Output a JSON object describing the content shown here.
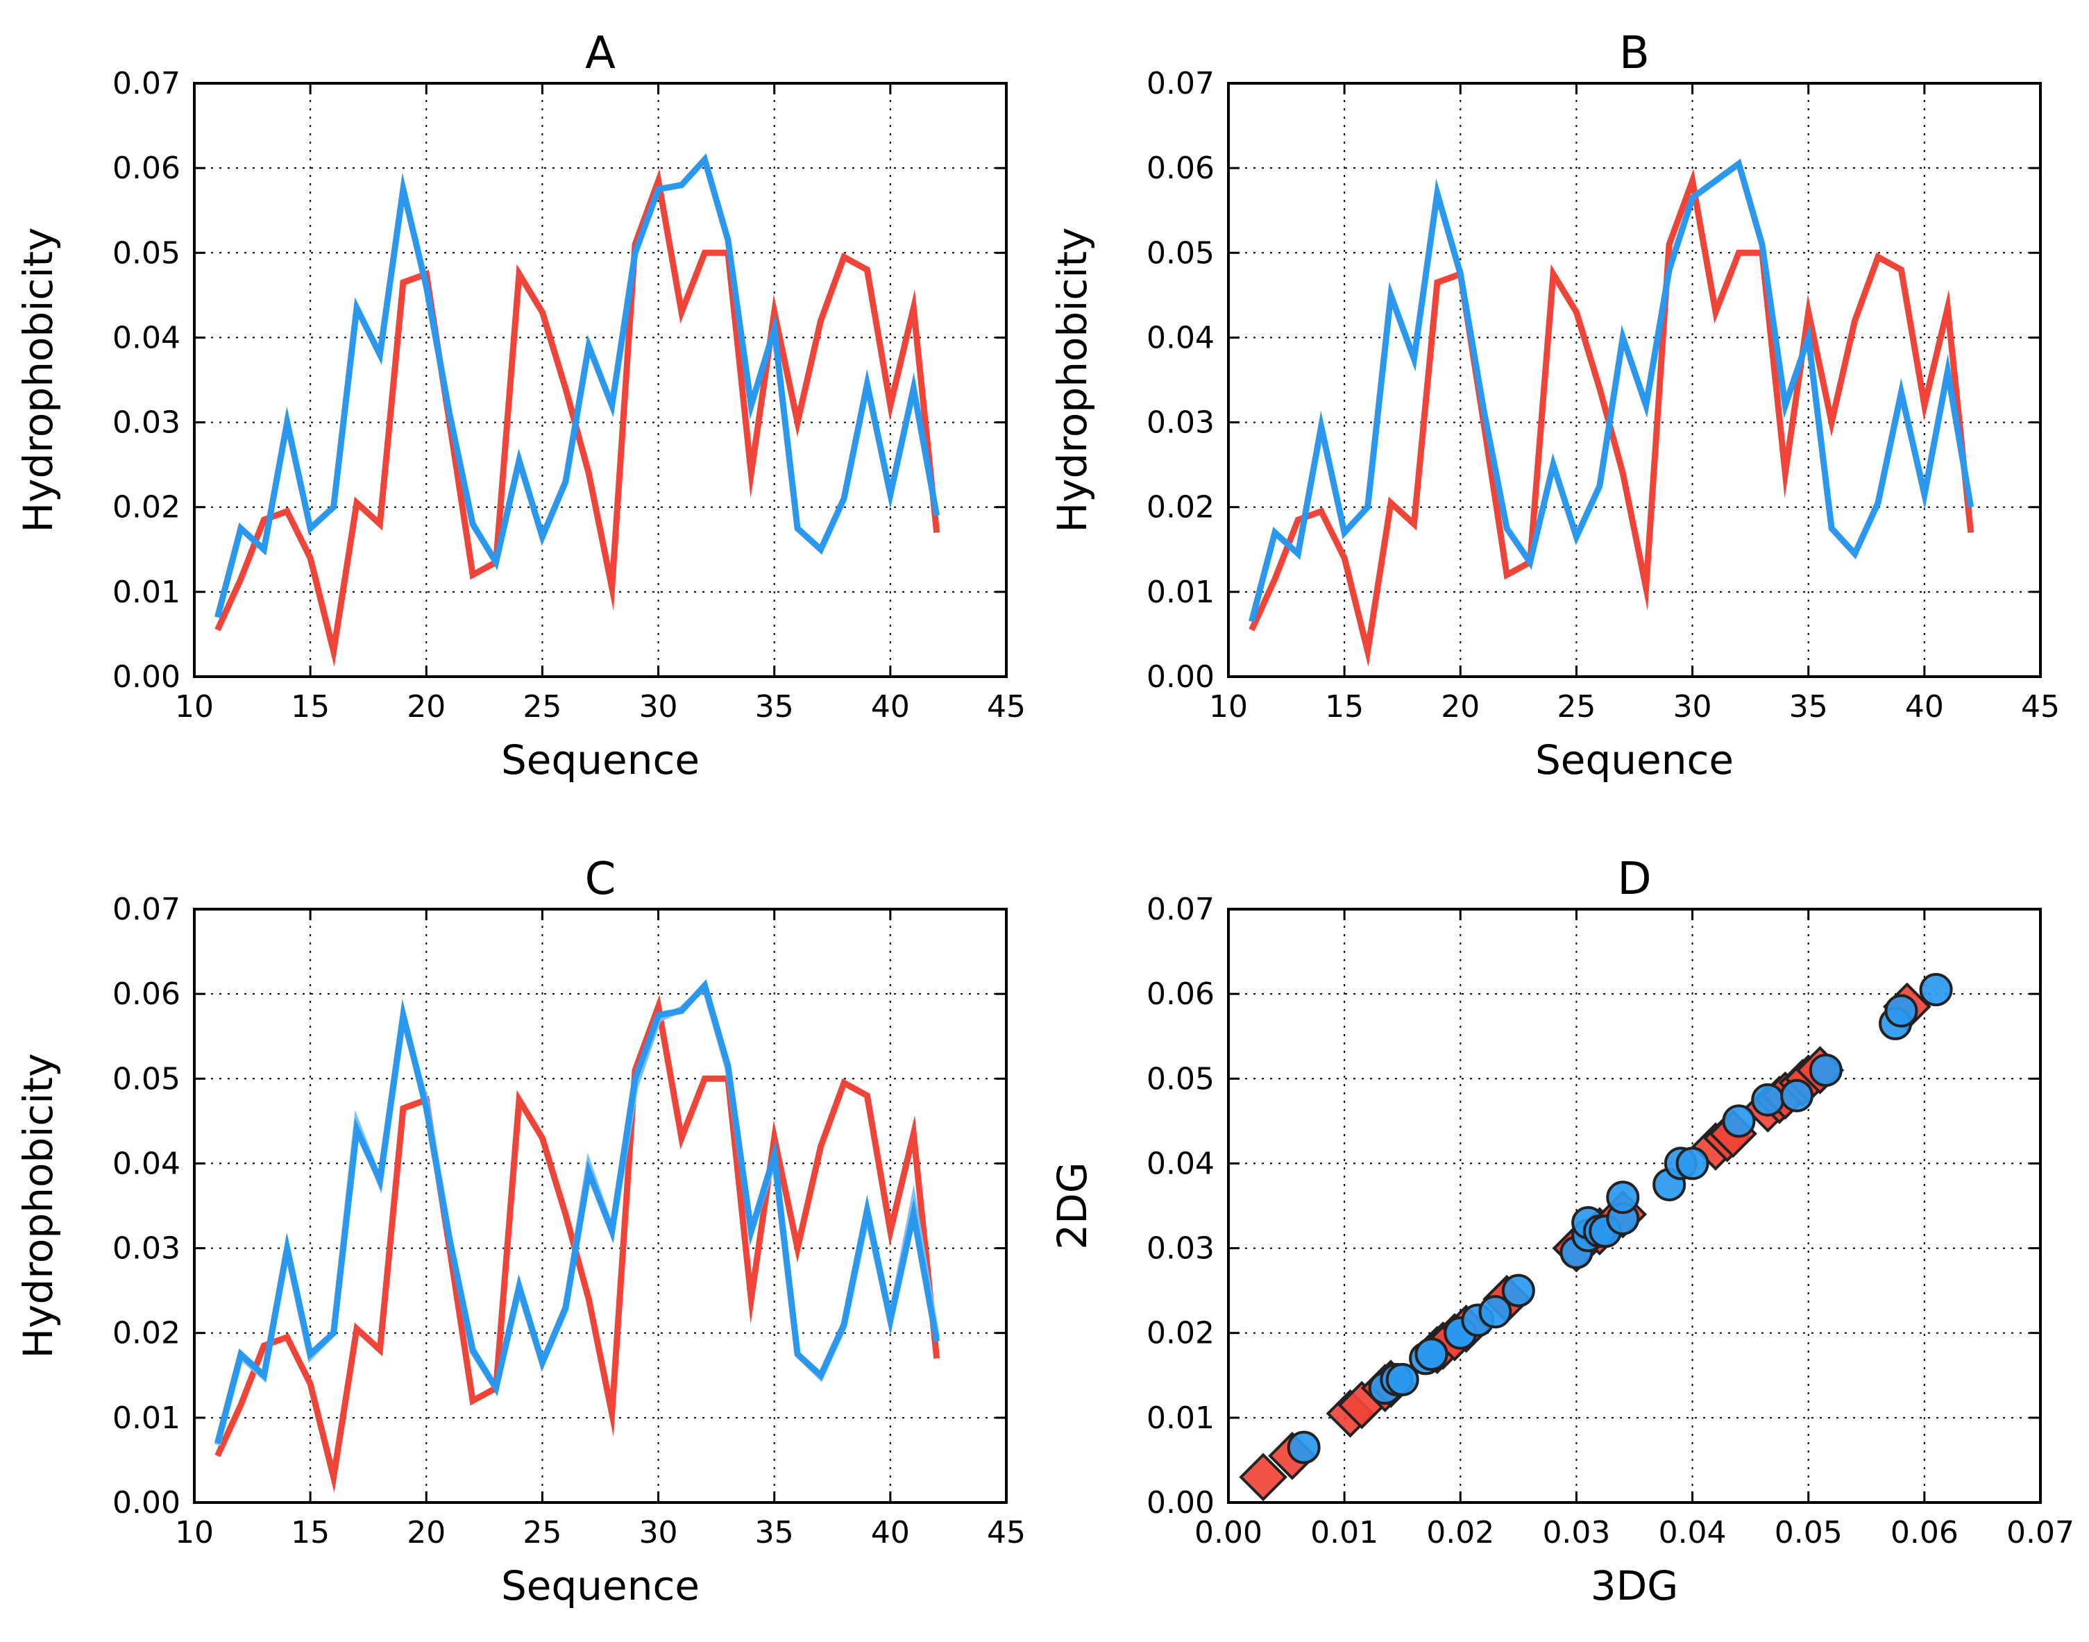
{
  "chart_data": [
    {
      "type": "line",
      "title": "A",
      "xlabel": "Sequence",
      "ylabel": "Hydrophobicity",
      "xlim": [
        10,
        45
      ],
      "ylim": [
        0.0,
        0.07
      ],
      "xticks": [
        "10",
        "15",
        "20",
        "25",
        "30",
        "35",
        "40",
        "45"
      ],
      "yticks": [
        "0.00",
        "0.01",
        "0.02",
        "0.03",
        "0.04",
        "0.05",
        "0.06",
        "0.07"
      ],
      "grid": true,
      "x": [
        11,
        12,
        13,
        14,
        15,
        16,
        17,
        18,
        19,
        20,
        21,
        22,
        23,
        24,
        25,
        26,
        27,
        28,
        29,
        30,
        31,
        32,
        33,
        34,
        35,
        36,
        37,
        38,
        39,
        40,
        41,
        42
      ],
      "series": [
        {
          "name": "red",
          "color": "#f04438",
          "values": [
            0.0055,
            0.0115,
            0.0185,
            0.0195,
            0.014,
            0.003,
            0.0205,
            0.018,
            0.0465,
            0.0475,
            0.03,
            0.012,
            0.0135,
            0.0475,
            0.043,
            0.034,
            0.024,
            0.0105,
            0.051,
            0.0585,
            0.043,
            0.05,
            0.05,
            0.024,
            0.043,
            0.03,
            0.042,
            0.0495,
            0.048,
            0.032,
            0.0435,
            0.017
          ]
        },
        {
          "name": "blue",
          "color": "#2b98ef",
          "values": [
            0.007,
            0.0175,
            0.015,
            0.03,
            0.0175,
            0.02,
            0.0435,
            0.038,
            0.0575,
            0.046,
            0.031,
            0.018,
            0.0135,
            0.0255,
            0.0165,
            0.023,
            0.039,
            0.032,
            0.05,
            0.0575,
            0.058,
            0.061,
            0.0515,
            0.032,
            0.041,
            0.0175,
            0.015,
            0.021,
            0.0345,
            0.0215,
            0.034,
            0.019
          ]
        }
      ]
    },
    {
      "type": "line",
      "title": "B",
      "xlabel": "Sequence",
      "ylabel": "Hydrophobicity",
      "xlim": [
        10,
        45
      ],
      "ylim": [
        0.0,
        0.07
      ],
      "xticks": [
        "10",
        "15",
        "20",
        "25",
        "30",
        "35",
        "40",
        "45"
      ],
      "yticks": [
        "0.00",
        "0.01",
        "0.02",
        "0.03",
        "0.04",
        "0.05",
        "0.06",
        "0.07"
      ],
      "grid": true,
      "x": [
        11,
        12,
        13,
        14,
        15,
        16,
        17,
        18,
        19,
        20,
        21,
        22,
        23,
        24,
        25,
        26,
        27,
        28,
        29,
        30,
        31,
        32,
        33,
        34,
        35,
        36,
        37,
        38,
        39,
        40,
        41,
        42
      ],
      "series": [
        {
          "name": "red",
          "color": "#f04438",
          "values": [
            0.0055,
            0.0115,
            0.0185,
            0.0195,
            0.014,
            0.003,
            0.0205,
            0.018,
            0.0465,
            0.0475,
            0.03,
            0.012,
            0.0135,
            0.0475,
            0.043,
            0.034,
            0.024,
            0.0105,
            0.051,
            0.0585,
            0.043,
            0.05,
            0.05,
            0.024,
            0.043,
            0.03,
            0.042,
            0.0495,
            0.048,
            0.032,
            0.0435,
            0.017
          ]
        },
        {
          "name": "blue",
          "color": "#2b98ef",
          "values": [
            0.0065,
            0.017,
            0.0145,
            0.0295,
            0.017,
            0.02,
            0.045,
            0.0375,
            0.057,
            0.0475,
            0.0315,
            0.0175,
            0.0135,
            0.025,
            0.0165,
            0.0225,
            0.04,
            0.032,
            0.048,
            0.0565,
            0.0585,
            0.0605,
            0.051,
            0.032,
            0.04,
            0.0175,
            0.0145,
            0.0205,
            0.0335,
            0.0215,
            0.036,
            0.02
          ]
        }
      ]
    },
    {
      "type": "line",
      "title": "C",
      "xlabel": "Sequence",
      "ylabel": "Hydrophobicity",
      "xlim": [
        10,
        45
      ],
      "ylim": [
        0.0,
        0.07
      ],
      "xticks": [
        "10",
        "15",
        "20",
        "25",
        "30",
        "35",
        "40",
        "45"
      ],
      "yticks": [
        "0.00",
        "0.01",
        "0.02",
        "0.03",
        "0.04",
        "0.05",
        "0.06",
        "0.07"
      ],
      "grid": true,
      "x": [
        11,
        12,
        13,
        14,
        15,
        16,
        17,
        18,
        19,
        20,
        21,
        22,
        23,
        24,
        25,
        26,
        27,
        28,
        29,
        30,
        31,
        32,
        33,
        34,
        35,
        36,
        37,
        38,
        39,
        40,
        41,
        42
      ],
      "series": [
        {
          "name": "red",
          "color": "#f04438",
          "values": [
            0.0055,
            0.0115,
            0.0185,
            0.0195,
            0.014,
            0.003,
            0.0205,
            0.018,
            0.0465,
            0.0475,
            0.03,
            0.012,
            0.0135,
            0.0475,
            0.043,
            0.034,
            0.024,
            0.0105,
            0.051,
            0.0585,
            0.043,
            0.05,
            0.05,
            0.024,
            0.043,
            0.03,
            0.042,
            0.0495,
            0.048,
            0.032,
            0.0435,
            0.017
          ]
        },
        {
          "name": "blue-light",
          "color": "#7fc0f5",
          "values": [
            0.0068,
            0.0172,
            0.0148,
            0.0298,
            0.0172,
            0.02,
            0.0448,
            0.0378,
            0.0572,
            0.047,
            0.0312,
            0.0178,
            0.0135,
            0.0252,
            0.0165,
            0.0228,
            0.0398,
            0.032,
            0.049,
            0.057,
            0.0582,
            0.0608,
            0.0512,
            0.032,
            0.0405,
            0.0175,
            0.0148,
            0.0208,
            0.034,
            0.0215,
            0.0355,
            0.0195
          ]
        },
        {
          "name": "blue",
          "color": "#2b98ef",
          "values": [
            0.007,
            0.0175,
            0.015,
            0.03,
            0.0175,
            0.02,
            0.044,
            0.038,
            0.0575,
            0.0465,
            0.031,
            0.018,
            0.0135,
            0.0255,
            0.0165,
            0.023,
            0.039,
            0.032,
            0.05,
            0.0575,
            0.058,
            0.061,
            0.0515,
            0.032,
            0.041,
            0.0175,
            0.015,
            0.021,
            0.0345,
            0.0215,
            0.034,
            0.019
          ]
        }
      ]
    },
    {
      "type": "scatter",
      "title": "D",
      "xlabel": "3DG",
      "ylabel": "2DG",
      "xlim": [
        0.0,
        0.07
      ],
      "ylim": [
        0.0,
        0.07
      ],
      "xticks": [
        "0.00",
        "0.01",
        "0.02",
        "0.03",
        "0.04",
        "0.05",
        "0.06",
        "0.07"
      ],
      "yticks": [
        "0.00",
        "0.01",
        "0.02",
        "0.03",
        "0.04",
        "0.05",
        "0.06",
        "0.07"
      ],
      "grid": true,
      "series": [
        {
          "name": "red-diamonds",
          "marker": "diamond",
          "color": "#f04438",
          "x": [
            0.003,
            0.0055,
            0.0105,
            0.0115,
            0.0135,
            0.014,
            0.018,
            0.0185,
            0.0195,
            0.0205,
            0.024,
            0.024,
            0.03,
            0.03,
            0.032,
            0.034,
            0.042,
            0.043,
            0.043,
            0.0435,
            0.0465,
            0.0475,
            0.0475,
            0.048,
            0.0495,
            0.05,
            0.05,
            0.051,
            0.0585
          ],
          "y": [
            0.003,
            0.0055,
            0.0105,
            0.0115,
            0.0135,
            0.014,
            0.018,
            0.0185,
            0.0195,
            0.0205,
            0.024,
            0.024,
            0.03,
            0.03,
            0.032,
            0.034,
            0.042,
            0.043,
            0.043,
            0.0435,
            0.0465,
            0.0475,
            0.0475,
            0.048,
            0.0495,
            0.05,
            0.05,
            0.051,
            0.0585
          ]
        },
        {
          "name": "blue-circles",
          "marker": "circle",
          "color": "#2b98ef",
          "x": [
            0.0065,
            0.0135,
            0.0145,
            0.015,
            0.017,
            0.0175,
            0.0175,
            0.02,
            0.02,
            0.0215,
            0.023,
            0.025,
            0.03,
            0.031,
            0.031,
            0.032,
            0.0325,
            0.034,
            0.034,
            0.038,
            0.039,
            0.04,
            0.044,
            0.0465,
            0.049,
            0.0515,
            0.0575,
            0.058,
            0.061
          ],
          "y": [
            0.0065,
            0.0135,
            0.0145,
            0.0145,
            0.017,
            0.0175,
            0.0175,
            0.02,
            0.02,
            0.0215,
            0.0225,
            0.025,
            0.0295,
            0.0315,
            0.033,
            0.032,
            0.032,
            0.0335,
            0.036,
            0.0375,
            0.04,
            0.04,
            0.045,
            0.0475,
            0.048,
            0.051,
            0.0565,
            0.058,
            0.0605
          ]
        }
      ]
    }
  ]
}
